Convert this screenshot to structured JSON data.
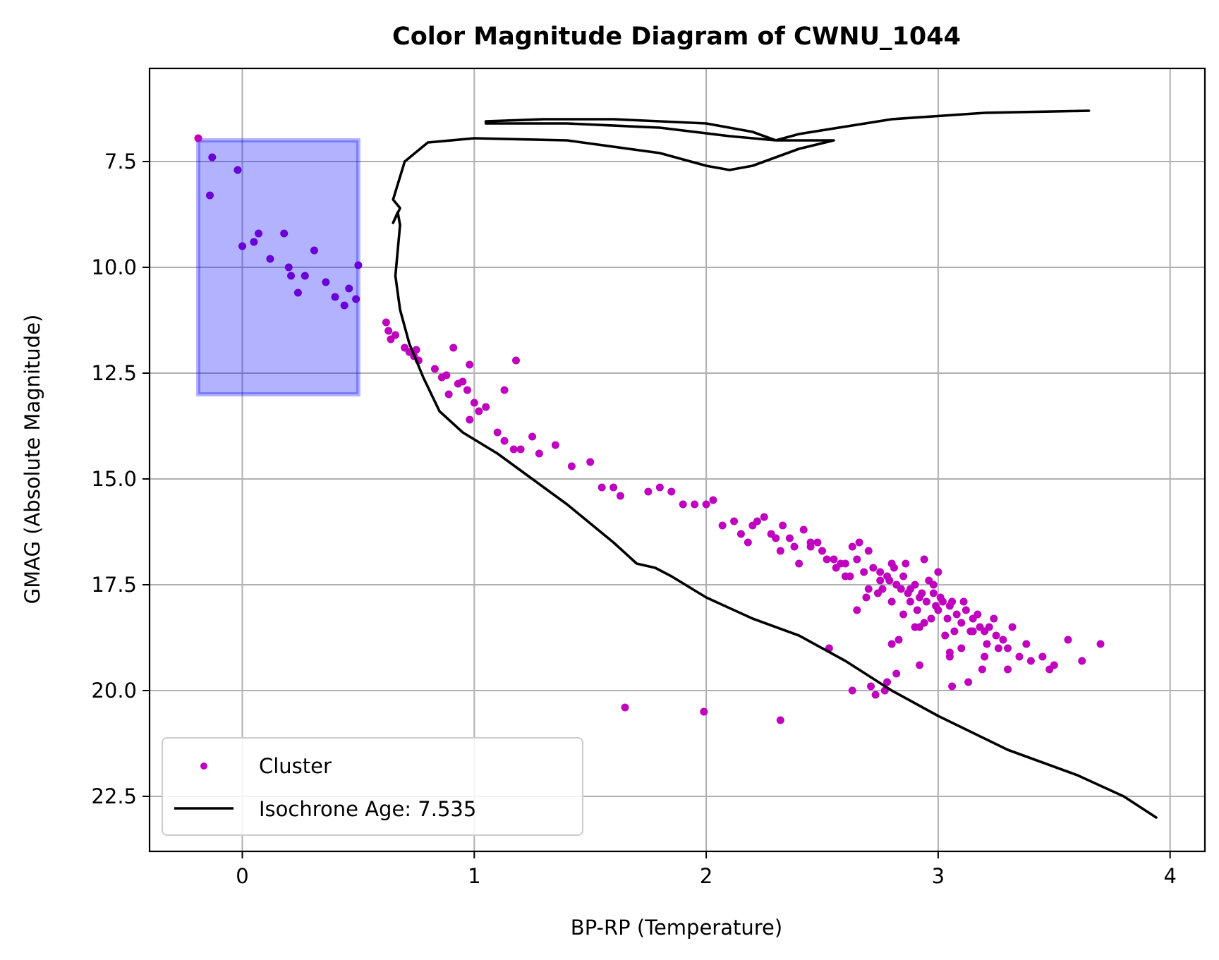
{
  "chart_data": {
    "type": "scatter",
    "title": "Color Magnitude Diagram of CWNU_1044",
    "xlabel": "BP-RP (Temperature)",
    "ylabel": "GMAG (Absolute Magnitude)",
    "xlim": [
      -0.4,
      4.15
    ],
    "ylim": [
      23.8,
      5.3
    ],
    "y_inverted": true,
    "grid": true,
    "x_ticks": [
      0,
      1,
      2,
      3,
      4
    ],
    "x_tick_labels": [
      "0",
      "1",
      "2",
      "3",
      "4"
    ],
    "y_ticks": [
      7.5,
      10.0,
      12.5,
      15.0,
      17.5,
      20.0,
      22.5
    ],
    "y_tick_labels": [
      "7.5",
      "10.0",
      "12.5",
      "15.0",
      "17.5",
      "20.0",
      "22.5"
    ],
    "legend": {
      "placement": "lower-left",
      "entries": [
        "Cluster",
        "Isochrone Age: 7.535"
      ]
    },
    "colors": {
      "cluster": "#bf00bf",
      "highlight_point": "#6a00d8",
      "isochrone": "#000000",
      "region_fill": "#0000ff",
      "grid": "#b0b0b0"
    },
    "highlight_region": {
      "x": [
        -0.19,
        0.5
      ],
      "y": [
        7.0,
        13.0
      ]
    },
    "series": [
      {
        "name": "Cluster",
        "type": "scatter",
        "x": [
          -0.19,
          -0.13,
          -0.02,
          -0.14,
          0.0,
          0.05,
          0.07,
          0.18,
          0.31,
          0.12,
          0.2,
          0.27,
          0.21,
          0.36,
          0.4,
          0.46,
          0.49,
          0.24,
          0.44,
          0.5,
          0.62,
          0.63,
          0.64,
          0.66,
          0.7,
          0.72,
          0.74,
          0.75,
          0.76,
          0.91,
          0.83,
          0.86,
          0.88,
          0.93,
          0.95,
          0.97,
          1.0,
          0.89,
          0.98,
          1.02,
          1.05,
          1.1,
          1.13,
          1.17,
          1.2,
          1.25,
          1.28,
          1.35,
          1.42,
          1.5,
          1.55,
          1.6,
          1.63,
          1.75,
          1.8,
          1.85,
          1.9,
          1.95,
          2.0,
          2.03,
          2.07,
          2.15,
          2.22,
          2.3,
          2.38,
          2.45,
          2.5,
          2.55,
          2.6,
          2.65,
          2.68,
          2.72,
          2.75,
          2.78,
          2.8,
          2.82,
          2.85,
          2.88,
          2.9,
          2.92,
          2.95,
          2.98,
          3.0,
          3.02,
          3.05,
          3.08,
          3.1,
          3.12,
          3.15,
          3.18,
          3.2,
          3.22,
          3.25,
          3.28,
          3.3,
          3.35,
          3.4,
          3.45,
          3.5,
          3.56,
          3.62,
          3.7,
          1.18,
          0.98,
          1.13,
          2.6,
          2.7,
          2.8,
          2.85,
          2.9,
          2.93,
          2.96,
          2.99,
          3.01,
          3.04,
          3.07,
          2.75,
          2.88,
          2.94,
          3.06,
          2.83,
          2.98,
          3.03,
          2.91,
          2.87,
          2.97,
          3.11,
          3.14,
          3.17,
          3.21,
          2.79,
          2.84,
          2.92,
          3.0,
          2.45,
          2.52,
          2.58,
          2.63,
          2.66,
          2.42,
          2.36,
          2.33,
          2.28,
          2.25,
          2.2,
          2.18,
          2.12,
          2.32,
          2.4,
          2.48,
          2.56,
          2.62,
          2.7,
          2.74,
          3.26,
          3.32,
          3.38,
          3.05,
          3.1,
          3.15,
          3.2,
          3.24,
          2.69,
          2.76,
          2.81,
          2.86,
          2.94,
          2.65,
          1.65,
          1.99,
          2.32,
          2.53,
          2.63,
          2.73,
          2.78,
          2.77,
          2.8,
          2.92,
          3.06,
          3.13,
          3.19,
          3.05,
          2.82,
          2.71,
          3.48,
          3.3
        ],
        "y": [
          6.95,
          7.4,
          7.7,
          8.3,
          9.5,
          9.4,
          9.2,
          9.2,
          9.6,
          9.8,
          10.0,
          10.2,
          10.2,
          10.35,
          10.7,
          10.5,
          10.75,
          10.6,
          10.9,
          9.95,
          11.3,
          11.5,
          11.7,
          11.6,
          11.9,
          12.0,
          12.1,
          11.95,
          12.2,
          11.9,
          12.4,
          12.6,
          12.55,
          12.75,
          12.7,
          12.9,
          13.2,
          13.0,
          13.6,
          13.4,
          13.3,
          13.9,
          14.1,
          14.3,
          14.3,
          14.0,
          14.4,
          14.2,
          14.7,
          14.6,
          15.2,
          15.2,
          15.4,
          15.3,
          15.2,
          15.3,
          15.6,
          15.6,
          15.6,
          15.5,
          16.1,
          16.3,
          16.0,
          16.4,
          16.6,
          16.5,
          16.7,
          16.9,
          17.0,
          16.9,
          17.2,
          17.1,
          17.4,
          17.3,
          17.0,
          17.5,
          17.3,
          17.6,
          17.5,
          17.8,
          17.9,
          17.7,
          18.1,
          17.9,
          18.0,
          18.2,
          18.4,
          18.1,
          18.3,
          18.5,
          18.6,
          18.5,
          18.7,
          18.8,
          19.0,
          19.2,
          19.3,
          19.2,
          19.4,
          18.8,
          19.3,
          18.9,
          12.2,
          12.3,
          12.9,
          17.3,
          17.6,
          17.9,
          18.2,
          18.5,
          17.7,
          17.4,
          18.0,
          17.8,
          18.3,
          18.6,
          17.2,
          17.9,
          18.4,
          17.9,
          18.8,
          17.5,
          18.7,
          18.1,
          17.7,
          18.3,
          17.9,
          18.6,
          18.2,
          18.9,
          17.4,
          17.6,
          18.5,
          17.2,
          16.6,
          16.9,
          17.0,
          16.6,
          16.5,
          16.2,
          16.4,
          16.1,
          16.3,
          15.9,
          16.1,
          16.5,
          16.0,
          16.7,
          17.0,
          16.5,
          17.1,
          17.3,
          16.7,
          17.7,
          19.0,
          18.5,
          18.9,
          19.2,
          19.0,
          18.6,
          19.2,
          18.3,
          17.8,
          17.6,
          17.1,
          17.0,
          16.9,
          18.1,
          20.4,
          20.5,
          20.7,
          19.0,
          20.0,
          20.1,
          19.8,
          20.0,
          18.9,
          19.4,
          19.9,
          19.8,
          19.5,
          19.1,
          19.6,
          19.9,
          19.5,
          19.5
        ]
      },
      {
        "name": "Isochrone Age: 7.535",
        "type": "line",
        "x": [
          3.65,
          3.2,
          2.8,
          2.4,
          2.3,
          2.2,
          2.0,
          1.6,
          1.3,
          1.05,
          1.05,
          1.4,
          1.8,
          2.1,
          2.3,
          2.55,
          2.4,
          2.2,
          2.1,
          2.0,
          1.8,
          1.4,
          1.0,
          0.8,
          0.7,
          0.65,
          0.68,
          0.65,
          0.67,
          0.68,
          0.67,
          0.66,
          0.68,
          0.72,
          0.78,
          0.85,
          0.95,
          1.1,
          1.25,
          1.4,
          1.6,
          1.7,
          1.78,
          1.85,
          2.0,
          2.2,
          2.4,
          2.6,
          2.8,
          3.0,
          3.3,
          3.6,
          3.8,
          3.94
        ],
        "y": [
          6.3,
          6.35,
          6.5,
          6.85,
          7.0,
          6.8,
          6.6,
          6.5,
          6.5,
          6.55,
          6.6,
          6.6,
          6.7,
          6.9,
          7.0,
          7.0,
          7.2,
          7.6,
          7.7,
          7.6,
          7.3,
          7.0,
          6.95,
          7.05,
          7.5,
          8.4,
          8.6,
          8.95,
          8.7,
          9.0,
          9.6,
          10.2,
          11.0,
          11.8,
          12.6,
          13.4,
          13.9,
          14.4,
          15.0,
          15.6,
          16.5,
          17.0,
          17.1,
          17.3,
          17.8,
          18.3,
          18.7,
          19.3,
          20.0,
          20.6,
          21.4,
          22.0,
          22.5,
          23.0
        ]
      }
    ]
  }
}
